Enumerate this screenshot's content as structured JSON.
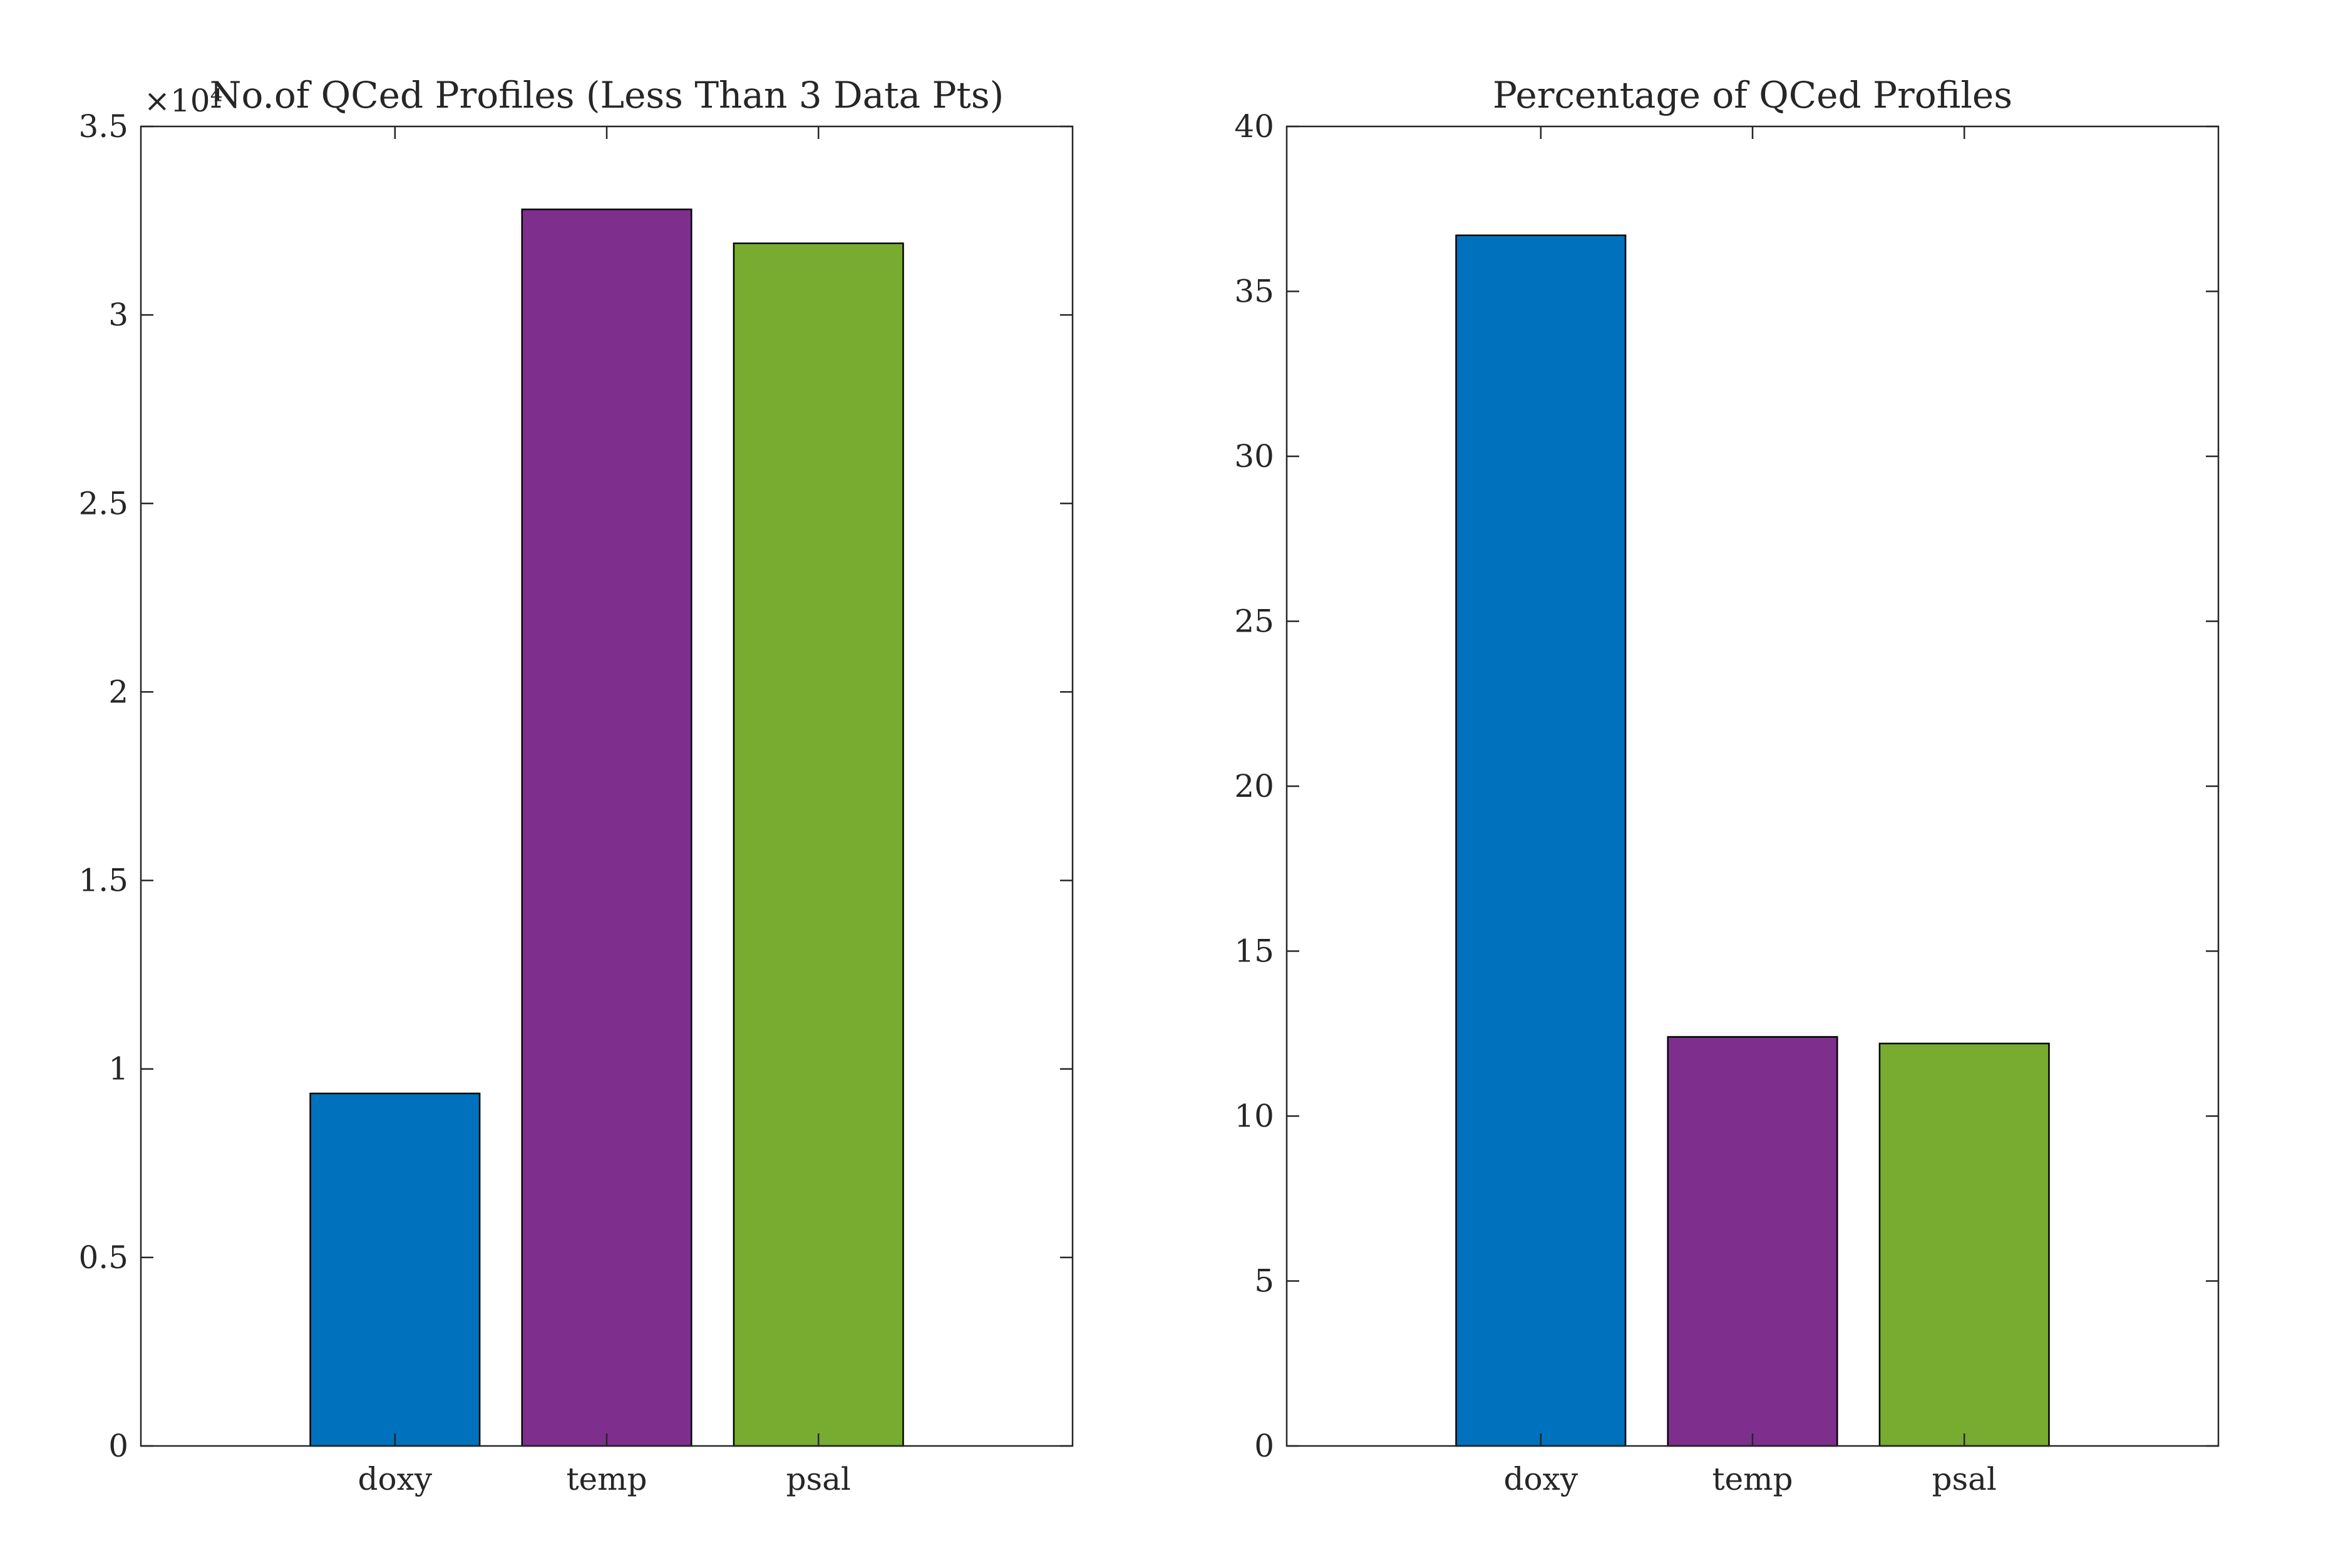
{
  "colors": {
    "doxy": "#0072BD",
    "temp": "#7E2F8E",
    "psal": "#77AC30",
    "axis": "#262626",
    "background": "#FFFFFF"
  },
  "chart_data": [
    {
      "type": "bar",
      "title": "No.of QCed Profiles (Less Than 3 Data Pts)",
      "exponent_label": "×10⁴",
      "categories": [
        "doxy",
        "temp",
        "psal"
      ],
      "values": [
        9350,
        32800,
        31900
      ],
      "ylim": [
        0,
        35000
      ],
      "yticks": [
        0,
        5000,
        10000,
        15000,
        20000,
        25000,
        30000,
        35000
      ],
      "ytick_labels": [
        "0",
        "0.5",
        "1",
        "1.5",
        "2",
        "2.5",
        "3",
        "3.5"
      ],
      "xlim": [
        -0.2,
        4.2
      ],
      "x_positions": [
        1,
        2,
        3
      ],
      "grid": false,
      "xlabel": "",
      "ylabel": ""
    },
    {
      "type": "bar",
      "title": "Percentage of QCed Profiles",
      "categories": [
        "doxy",
        "temp",
        "psal"
      ],
      "values": [
        36.7,
        12.4,
        12.2
      ],
      "ylim": [
        0,
        40
      ],
      "yticks": [
        0,
        5,
        10,
        15,
        20,
        25,
        30,
        35,
        40
      ],
      "ytick_labels": [
        "0",
        "5",
        "10",
        "15",
        "20",
        "25",
        "30",
        "35",
        "40"
      ],
      "xlim": [
        -0.2,
        4.2
      ],
      "x_positions": [
        1,
        2,
        3
      ],
      "grid": false,
      "xlabel": "",
      "ylabel": ""
    }
  ]
}
